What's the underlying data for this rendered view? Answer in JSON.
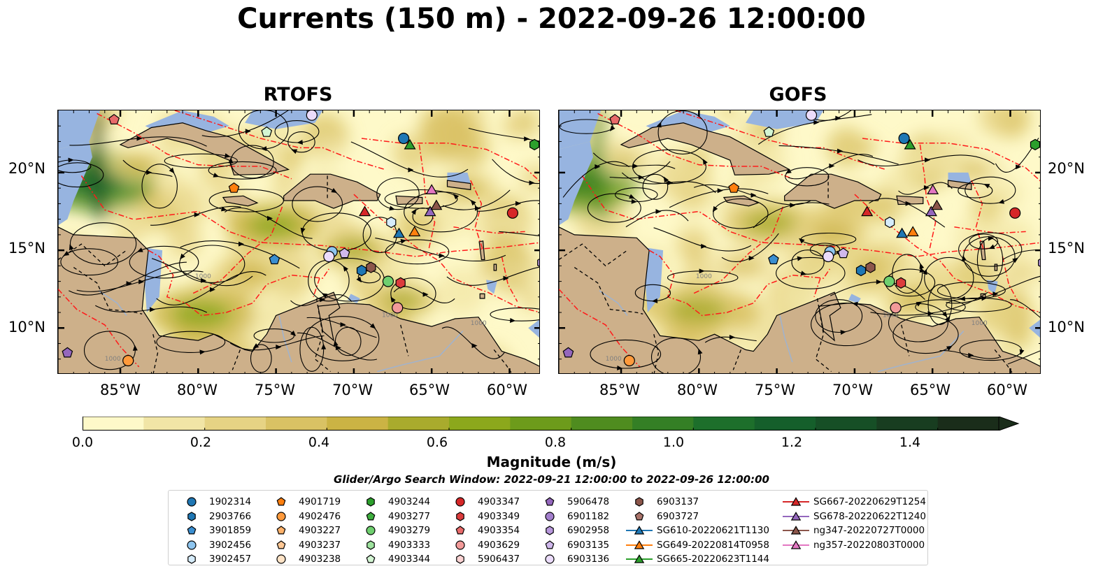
{
  "title": "Currents (150 m) - 2022-09-26 12:00:00",
  "panels": [
    {
      "title": "RTOFS",
      "seed": 11
    },
    {
      "title": "GOFS",
      "seed": 29
    }
  ],
  "map": {
    "lon_range": [
      -89,
      -58
    ],
    "lat_range": [
      7,
      24
    ],
    "lat_ticks": [
      "20°N",
      "15°N",
      "10°N"
    ],
    "lon_ticks": [
      "85°W",
      "80°W",
      "75°W",
      "70°W",
      "65°W",
      "60°W"
    ],
    "colors": {
      "ocean_deep": "#97b4e0",
      "land": "#cdb08a",
      "boundary": "#ff1a1a"
    }
  },
  "colorbar": {
    "label": "Magnitude (m/s)",
    "ticks": [
      "0.0",
      "0.2",
      "0.4",
      "0.6",
      "0.8",
      "1.0",
      "1.2",
      "1.4"
    ],
    "range": [
      0,
      1.5
    ],
    "colors": [
      "#fef9c9",
      "#f1e5a6",
      "#e6d384",
      "#d9c264",
      "#cbb344",
      "#a9ab2d",
      "#8ca81c",
      "#6d9b1b",
      "#4f8c1f",
      "#347f25",
      "#1d6f2b",
      "#155f2b",
      "#164f26",
      "#183d20",
      "#1a2d1a"
    ]
  },
  "search_window": "Glider/Argo Search Window: 2022-09-21 12:00:00 to 2022-09-26 12:00:00",
  "legend": [
    {
      "label": "1902314",
      "marker": "circle",
      "color": "#1f77b4"
    },
    {
      "label": "2903766",
      "marker": "hexagon",
      "color": "#1f77b4"
    },
    {
      "label": "3901859",
      "marker": "pentagon",
      "color": "#3a8ed0"
    },
    {
      "label": "3902456",
      "marker": "circle",
      "color": "#8ec5ef"
    },
    {
      "label": "3902457",
      "marker": "hexagon",
      "color": "#d6ecfb"
    },
    {
      "label": "4901719",
      "marker": "pentagon",
      "color": "#ff7f0e"
    },
    {
      "label": "4902476",
      "marker": "circle",
      "color": "#ff9a3c"
    },
    {
      "label": "4903227",
      "marker": "pentagon",
      "color": "#ffb26b"
    },
    {
      "label": "4903237",
      "marker": "pentagon",
      "color": "#ffc895"
    },
    {
      "label": "4903238",
      "marker": "circle",
      "color": "#ffe3c6"
    },
    {
      "label": "4903244",
      "marker": "hexagon",
      "color": "#2ca02c"
    },
    {
      "label": "4903277",
      "marker": "pentagon",
      "color": "#3eae3e"
    },
    {
      "label": "4903279",
      "marker": "circle",
      "color": "#6fcf6f"
    },
    {
      "label": "4903333",
      "marker": "hexagon",
      "color": "#9ee29e"
    },
    {
      "label": "4903344",
      "marker": "pentagon",
      "color": "#d3f5d3"
    },
    {
      "label": "4903347",
      "marker": "circle",
      "color": "#d62728"
    },
    {
      "label": "4903349",
      "marker": "hexagon",
      "color": "#dc3c3d"
    },
    {
      "label": "4903354",
      "marker": "pentagon",
      "color": "#e86a6a"
    },
    {
      "label": "4903629",
      "marker": "circle",
      "color": "#f29a99"
    },
    {
      "label": "5906437",
      "marker": "hexagon",
      "color": "#fbd3d3"
    },
    {
      "label": "5906478",
      "marker": "pentagon",
      "color": "#9467bd"
    },
    {
      "label": "6901182",
      "marker": "circle",
      "color": "#a37fcd"
    },
    {
      "label": "6902958",
      "marker": "hexagon",
      "color": "#b898dc"
    },
    {
      "label": "6903135",
      "marker": "pentagon",
      "color": "#d0b8ec"
    },
    {
      "label": "6903136",
      "marker": "circle",
      "color": "#ebdcfb"
    },
    {
      "label": "6903137",
      "marker": "hexagon",
      "color": "#8c564b"
    },
    {
      "label": "6903727",
      "marker": "pentagon",
      "color": "#a9736a"
    },
    {
      "label": "SG610-20220621T1130",
      "marker": "triangle-line",
      "color": "#1f77b4"
    },
    {
      "label": "SG649-20220814T0958",
      "marker": "triangle-line",
      "color": "#ff7f0e"
    },
    {
      "label": "SG665-20220623T1144",
      "marker": "triangle-line",
      "color": "#2ca02c"
    },
    {
      "label": "SG667-20220629T1254",
      "marker": "triangle-line",
      "color": "#d62728"
    },
    {
      "label": "SG678-20220622T1240",
      "marker": "triangle-line",
      "color": "#9467bd"
    },
    {
      "label": "ng347-20220727T0000",
      "marker": "triangle-line",
      "color": "#8c564b"
    },
    {
      "label": "ng357-20220803T0000",
      "marker": "triangle-line",
      "color": "#e377c2"
    }
  ],
  "observations": [
    {
      "lon": -66.8,
      "lat": 22.2,
      "ref": 0
    },
    {
      "lon": -69.5,
      "lat": 13.7,
      "ref": 1
    },
    {
      "lon": -75.1,
      "lat": 14.4,
      "ref": 2
    },
    {
      "lon": -71.4,
      "lat": 14.9,
      "ref": 3
    },
    {
      "lon": -67.6,
      "lat": 16.8,
      "ref": 4
    },
    {
      "lon": -77.7,
      "lat": 19.0,
      "ref": 5
    },
    {
      "lon": -84.5,
      "lat": 7.9,
      "ref": 6
    },
    {
      "lon": -58.4,
      "lat": 21.8,
      "ref": 10
    },
    {
      "lon": -67.8,
      "lat": 13.0,
      "ref": 12
    },
    {
      "lon": -75.6,
      "lat": 22.6,
      "ref": 14
    },
    {
      "lon": -59.8,
      "lat": 17.4,
      "ref": 15
    },
    {
      "lon": -67.0,
      "lat": 12.9,
      "ref": 16
    },
    {
      "lon": -85.4,
      "lat": 23.4,
      "ref": 17
    },
    {
      "lon": -67.2,
      "lat": 11.3,
      "ref": 18
    },
    {
      "lon": -88.4,
      "lat": 8.4,
      "ref": 20
    },
    {
      "lon": -57.9,
      "lat": 14.2,
      "ref": 22
    },
    {
      "lon": -70.6,
      "lat": 14.8,
      "ref": 23
    },
    {
      "lon": -71.6,
      "lat": 14.6,
      "ref": 24
    },
    {
      "lon": -72.7,
      "lat": 23.7,
      "ref": 24
    },
    {
      "lon": -68.9,
      "lat": 13.9,
      "ref": 25
    },
    {
      "lon": -67.1,
      "lat": 16.1,
      "ref": 27
    },
    {
      "lon": -66.1,
      "lat": 16.2,
      "ref": 28
    },
    {
      "lon": -66.4,
      "lat": 21.8,
      "ref": 29
    },
    {
      "lon": -69.3,
      "lat": 17.5,
      "ref": 30
    },
    {
      "lon": -65.1,
      "lat": 17.5,
      "ref": 31
    },
    {
      "lon": -64.7,
      "lat": 17.9,
      "ref": 32
    },
    {
      "lon": -65.0,
      "lat": 18.9,
      "ref": 33
    }
  ]
}
